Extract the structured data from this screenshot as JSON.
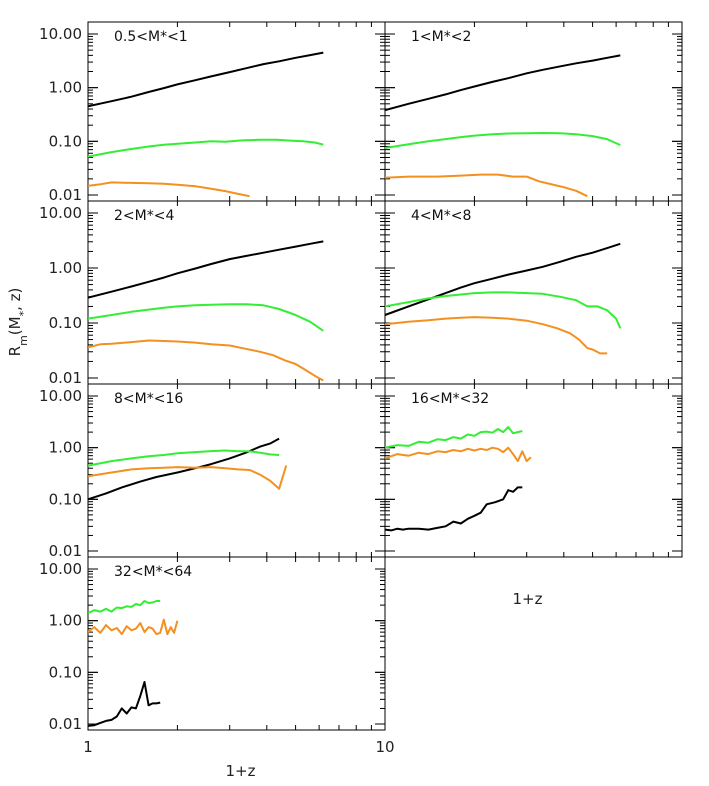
{
  "chart_data": {
    "type": "line",
    "xlabel": "1+z",
    "ylabel_main": "R",
    "ylabel_sub": "m",
    "ylabel_args": "(M",
    "ylabel_star": "*",
    "ylabel_tail": ", z)",
    "x_axis_label_right": "1+z",
    "xscale": "log",
    "yscale": "log",
    "xlim": [
      1,
      10
    ],
    "ylim": [
      0.01,
      10
    ],
    "y_ticks": [
      "10.00",
      "1.00",
      "0.10",
      "0.01"
    ],
    "x_ticks": [
      "1",
      "10"
    ],
    "series_colors": {
      "black": "#000000",
      "green": "#33ee33",
      "orange": "#f39020"
    },
    "panels": [
      {
        "label": "0.5<M*<1",
        "series": [
          {
            "color": "black",
            "x": [
              1.0,
              1.2,
              1.4,
              1.6,
              1.8,
              2.0,
              2.3,
              2.6,
              3.0,
              3.4,
              3.9,
              4.4,
              5.0,
              5.6,
              6.2
            ],
            "y": [
              0.45,
              0.56,
              0.68,
              0.83,
              0.98,
              1.15,
              1.38,
              1.62,
              1.95,
              2.3,
              2.75,
              3.1,
              3.6,
              4.05,
              4.5
            ]
          },
          {
            "color": "green",
            "x": [
              1.0,
              1.2,
              1.4,
              1.6,
              1.8,
              2.0,
              2.3,
              2.6,
              2.9,
              3.3,
              3.8,
              4.3,
              4.8,
              5.3,
              5.8,
              6.2
            ],
            "y": [
              0.052,
              0.063,
              0.072,
              0.08,
              0.086,
              0.09,
              0.095,
              0.1,
              0.098,
              0.104,
              0.107,
              0.107,
              0.103,
              0.1,
              0.095,
              0.087
            ]
          },
          {
            "color": "orange",
            "x": [
              1.0,
              1.1,
              1.2,
              1.4,
              1.6,
              1.8,
              2.0,
              2.3,
              2.6,
              2.9,
              3.2,
              3.5
            ],
            "y": [
              0.0148,
              0.0158,
              0.0172,
              0.0168,
              0.0165,
              0.0162,
              0.0155,
              0.0145,
              0.0131,
              0.0118,
              0.0105,
              0.0095
            ]
          }
        ]
      },
      {
        "label": "1<M*<2",
        "series": [
          {
            "color": "black",
            "x": [
              1.0,
              1.2,
              1.4,
              1.6,
              1.8,
              2.0,
              2.3,
              2.6,
              3.0,
              3.4,
              3.9,
              4.4,
              5.0,
              5.6,
              6.2
            ],
            "y": [
              0.38,
              0.5,
              0.62,
              0.75,
              0.9,
              1.05,
              1.28,
              1.5,
              1.85,
              2.15,
              2.5,
              2.85,
              3.2,
              3.6,
              4.0
            ]
          },
          {
            "color": "green",
            "x": [
              1.0,
              1.2,
              1.4,
              1.6,
              1.8,
              2.0,
              2.3,
              2.6,
              3.0,
              3.4,
              3.9,
              4.4,
              5.0,
              5.6,
              6.2
            ],
            "y": [
              0.075,
              0.088,
              0.1,
              0.11,
              0.12,
              0.128,
              0.135,
              0.14,
              0.142,
              0.143,
              0.142,
              0.135,
              0.125,
              0.11,
              0.085
            ]
          },
          {
            "color": "orange",
            "x": [
              1.0,
              1.2,
              1.5,
              1.8,
              2.1,
              2.4,
              2.7,
              3.0,
              3.3,
              3.6,
              4.0,
              4.4,
              4.8
            ],
            "y": [
              0.021,
              0.022,
              0.022,
              0.023,
              0.024,
              0.024,
              0.022,
              0.022,
              0.018,
              0.016,
              0.014,
              0.012,
              0.0095
            ]
          }
        ]
      },
      {
        "label": "2<M*<4",
        "series": [
          {
            "color": "black",
            "x": [
              1.0,
              1.2,
              1.4,
              1.6,
              1.8,
              2.0,
              2.3,
              2.6,
              3.0,
              3.4,
              3.9,
              4.4,
              5.0,
              5.6,
              6.2
            ],
            "y": [
              0.29,
              0.37,
              0.46,
              0.56,
              0.67,
              0.8,
              0.98,
              1.18,
              1.45,
              1.65,
              1.9,
              2.15,
              2.45,
              2.75,
              3.05
            ]
          },
          {
            "color": "green",
            "x": [
              1.0,
              1.2,
              1.4,
              1.6,
              1.8,
              2.0,
              2.3,
              2.6,
              3.0,
              3.4,
              3.9,
              4.4,
              5.0,
              5.6,
              6.2
            ],
            "y": [
              0.12,
              0.14,
              0.16,
              0.175,
              0.19,
              0.2,
              0.21,
              0.215,
              0.22,
              0.22,
              0.21,
              0.18,
              0.14,
              0.105,
              0.072
            ]
          },
          {
            "color": "orange",
            "x": [
              1.0,
              1.1,
              1.2,
              1.4,
              1.6,
              1.8,
              2.0,
              2.3,
              2.6,
              3.0,
              3.4,
              3.8,
              4.2,
              4.6,
              5.0,
              5.4,
              5.8,
              6.2
            ],
            "y": [
              0.036,
              0.041,
              0.042,
              0.045,
              0.048,
              0.047,
              0.046,
              0.044,
              0.041,
              0.039,
              0.034,
              0.03,
              0.026,
              0.021,
              0.018,
              0.014,
              0.011,
              0.009
            ]
          }
        ]
      },
      {
        "label": "4<M*<8",
        "series": [
          {
            "color": "black",
            "x": [
              1.0,
              1.2,
              1.4,
              1.6,
              1.8,
              2.0,
              2.3,
              2.6,
              3.0,
              3.4,
              3.9,
              4.4,
              5.0,
              5.6,
              6.2
            ],
            "y": [
              0.14,
              0.2,
              0.27,
              0.35,
              0.44,
              0.53,
              0.64,
              0.76,
              0.9,
              1.05,
              1.3,
              1.6,
              1.9,
              2.3,
              2.75
            ]
          },
          {
            "color": "green",
            "x": [
              1.0,
              1.2,
              1.4,
              1.6,
              1.8,
              2.0,
              2.3,
              2.6,
              3.0,
              3.4,
              3.9,
              4.4,
              4.8,
              5.2,
              5.6,
              6.0,
              6.2
            ],
            "y": [
              0.2,
              0.24,
              0.28,
              0.31,
              0.33,
              0.35,
              0.36,
              0.36,
              0.35,
              0.34,
              0.3,
              0.26,
              0.2,
              0.2,
              0.17,
              0.12,
              0.08
            ]
          },
          {
            "color": "orange",
            "x": [
              1.0,
              1.2,
              1.4,
              1.6,
              1.8,
              2.0,
              2.3,
              2.6,
              3.0,
              3.4,
              3.8,
              4.2,
              4.5,
              4.8,
              5.0,
              5.3,
              5.6
            ],
            "y": [
              0.095,
              0.105,
              0.112,
              0.12,
              0.125,
              0.128,
              0.125,
              0.12,
              0.11,
              0.095,
              0.08,
              0.065,
              0.05,
              0.035,
              0.033,
              0.028,
              0.028
            ]
          }
        ]
      },
      {
        "label": "8<M*<16",
        "series": [
          {
            "color": "black",
            "x": [
              1.0,
              1.15,
              1.3,
              1.5,
              1.7,
              2.0,
              2.3,
              2.6,
              3.0,
              3.4,
              3.8,
              4.1,
              4.4
            ],
            "y": [
              0.1,
              0.13,
              0.17,
              0.22,
              0.27,
              0.33,
              0.4,
              0.48,
              0.62,
              0.8,
              1.05,
              1.2,
              1.5
            ]
          },
          {
            "color": "green",
            "x": [
              1.0,
              1.2,
              1.4,
              1.6,
              1.8,
              2.0,
              2.3,
              2.6,
              2.9,
              3.2,
              3.5,
              3.8,
              4.1,
              4.4
            ],
            "y": [
              0.45,
              0.55,
              0.62,
              0.68,
              0.72,
              0.78,
              0.82,
              0.86,
              0.88,
              0.85,
              0.85,
              0.8,
              0.74,
              0.72
            ]
          },
          {
            "color": "orange",
            "x": [
              1.0,
              1.2,
              1.4,
              1.6,
              1.8,
              2.0,
              2.3,
              2.6,
              2.9,
              3.2,
              3.5,
              3.8,
              4.1,
              4.4,
              4.65
            ],
            "y": [
              0.28,
              0.33,
              0.38,
              0.4,
              0.41,
              0.42,
              0.41,
              0.42,
              0.4,
              0.38,
              0.37,
              0.3,
              0.23,
              0.16,
              0.45
            ]
          }
        ]
      },
      {
        "label": "16<M*<32",
        "series": [
          {
            "color": "black",
            "x": [
              1.0,
              1.05,
              1.1,
              1.15,
              1.2,
              1.3,
              1.4,
              1.5,
              1.6,
              1.7,
              1.8,
              1.9,
              2.0,
              2.1,
              2.2,
              2.35,
              2.5,
              2.6,
              2.7,
              2.8,
              2.9
            ],
            "y": [
              0.026,
              0.025,
              0.027,
              0.026,
              0.027,
              0.027,
              0.026,
              0.028,
              0.03,
              0.037,
              0.034,
              0.042,
              0.048,
              0.055,
              0.08,
              0.088,
              0.1,
              0.15,
              0.14,
              0.17,
              0.17
            ]
          },
          {
            "color": "green",
            "x": [
              1.0,
              1.1,
              1.2,
              1.3,
              1.4,
              1.5,
              1.6,
              1.7,
              1.8,
              1.9,
              2.0,
              2.1,
              2.2,
              2.3,
              2.4,
              2.5,
              2.6,
              2.7,
              2.8,
              2.9
            ],
            "y": [
              1.0,
              1.12,
              1.08,
              1.3,
              1.25,
              1.45,
              1.4,
              1.6,
              1.5,
              1.8,
              1.7,
              2.0,
              2.05,
              1.95,
              2.3,
              2.0,
              2.5,
              1.9,
              2.0,
              2.1
            ]
          },
          {
            "color": "orange",
            "x": [
              1.0,
              1.1,
              1.2,
              1.3,
              1.4,
              1.5,
              1.6,
              1.7,
              1.8,
              1.9,
              2.0,
              2.1,
              2.2,
              2.3,
              2.4,
              2.5,
              2.6,
              2.7,
              2.8,
              2.9,
              3.0,
              3.1
            ],
            "y": [
              0.62,
              0.75,
              0.7,
              0.8,
              0.75,
              0.85,
              0.82,
              0.9,
              0.85,
              0.95,
              0.88,
              0.95,
              0.9,
              1.0,
              0.95,
              0.82,
              1.0,
              0.75,
              0.55,
              0.85,
              0.55,
              0.65
            ]
          }
        ]
      },
      {
        "label": "32<M*<64",
        "series": [
          {
            "color": "black",
            "x": [
              1.0,
              1.05,
              1.1,
              1.15,
              1.2,
              1.25,
              1.3,
              1.35,
              1.4,
              1.45,
              1.5,
              1.55,
              1.6,
              1.65,
              1.7,
              1.75
            ],
            "y": [
              0.0092,
              0.0095,
              0.0105,
              0.0115,
              0.012,
              0.014,
              0.02,
              0.016,
              0.021,
              0.02,
              0.035,
              0.065,
              0.023,
              0.025,
              0.025,
              0.026
            ]
          },
          {
            "color": "green",
            "x": [
              1.0,
              1.05,
              1.1,
              1.15,
              1.2,
              1.25,
              1.3,
              1.35,
              1.4,
              1.45,
              1.5,
              1.55,
              1.6,
              1.65,
              1.7,
              1.75
            ],
            "y": [
              1.4,
              1.6,
              1.5,
              1.7,
              1.5,
              1.8,
              1.75,
              1.9,
              1.85,
              2.1,
              2.0,
              2.4,
              2.2,
              2.25,
              2.4,
              2.4
            ]
          },
          {
            "color": "orange",
            "x": [
              1.0,
              1.05,
              1.1,
              1.15,
              1.2,
              1.25,
              1.3,
              1.35,
              1.4,
              1.45,
              1.5,
              1.55,
              1.6,
              1.65,
              1.7,
              1.75,
              1.8,
              1.85,
              1.9,
              1.95,
              2.0
            ],
            "y": [
              0.6,
              0.75,
              0.58,
              0.82,
              0.65,
              0.72,
              0.55,
              0.78,
              0.65,
              0.7,
              0.9,
              0.6,
              0.75,
              0.7,
              0.55,
              0.58,
              1.05,
              0.55,
              0.75,
              0.58,
              1.0
            ]
          }
        ]
      }
    ]
  }
}
